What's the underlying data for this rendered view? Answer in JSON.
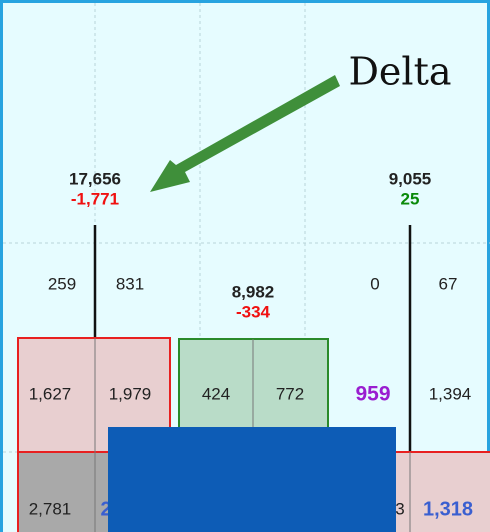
{
  "annotation": "Delta",
  "columns": [
    {
      "total": "17,656",
      "delta": "-1,771",
      "rows": [
        [
          "259",
          "831"
        ],
        [
          "1,627",
          "1,979"
        ],
        [
          "2,781",
          "2"
        ]
      ]
    },
    {
      "total": "8,982",
      "delta": "-334",
      "rows": [
        [
          "424",
          "772"
        ]
      ]
    },
    {
      "total": "9,055",
      "delta": "25",
      "rows": [
        [
          "0",
          "67"
        ],
        [
          "959",
          "1,394"
        ],
        [
          "3",
          "1,318"
        ]
      ]
    }
  ]
}
